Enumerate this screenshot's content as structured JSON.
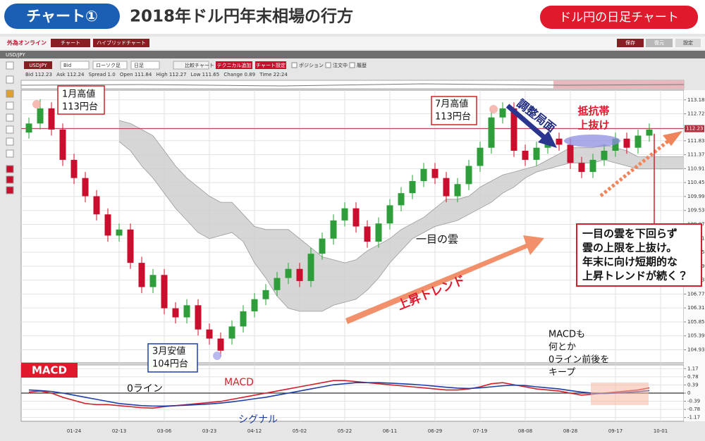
{
  "header": {
    "badge": "チャート①",
    "title": "2018年ドル円年末相場の行方",
    "tag": "ドル円の日足チャート"
  },
  "platform": {
    "logo": "外為オンライン",
    "tabs": [
      "チャート",
      "ハイブリッドチャート"
    ],
    "buttons": [
      "保存",
      "復元",
      "設定"
    ],
    "symbol": "USD/JPY",
    "toolbar": [
      "USDJPY",
      "Bid",
      "ローソク足",
      "日足",
      "比較チャート",
      "テクニカル追加",
      "チャート設定",
      "ポジション",
      "注文中",
      "履歴"
    ],
    "quote": [
      "Bid",
      "112.23",
      "Ask",
      "112.24",
      "Spread",
      "1.0",
      "Open",
      "111.84",
      "High",
      "112.27",
      "Low",
      "111.65",
      "Change",
      "0.89",
      "Time",
      "22:24"
    ]
  },
  "annotations": {
    "jan_high": [
      "1月高値",
      "113円台"
    ],
    "mar_low": [
      "3月安値",
      "104円台"
    ],
    "jul_high": [
      "7月高値",
      "113円台"
    ],
    "adjustment": "調整局面",
    "breakout": [
      "抵抗帯",
      "上抜け"
    ],
    "cloud": "一目の雲",
    "uptrend": "上昇トレンド",
    "outlook": [
      "一目の雲を下回らず",
      "雲の上限を上抜け。",
      "年末に向け短期的な",
      "上昇トレンドが続く？"
    ],
    "macd_note": [
      "MACDも",
      "何とか",
      "0ライン前後を",
      "キープ"
    ],
    "zero_line": "0ライン"
  },
  "chart_data": [
    {
      "type": "candlestick",
      "categories": [
        null,
        null,
        null,
        null,
        "01-24",
        null,
        null,
        null,
        "02-13",
        null,
        null,
        null,
        "03-06",
        null,
        null,
        null,
        "03-23",
        null,
        null,
        null,
        "04-12",
        null,
        null,
        null,
        "05-02",
        null,
        null,
        null,
        "05-22",
        null,
        null,
        null,
        "06-11",
        null,
        null,
        null,
        "06-29",
        null,
        null,
        null,
        "07-19",
        null,
        null,
        null,
        "08-08",
        null,
        null,
        null,
        "08-28",
        null,
        null,
        null,
        "09-17",
        null,
        null,
        null,
        "10-01",
        null,
        null
      ],
      "open": [
        112.1,
        112.4,
        112.9,
        112.2,
        111.2,
        110.6,
        110.0,
        109.4,
        108.7,
        108.9,
        107.8,
        107.0,
        107.4,
        106.3,
        106.0,
        106.4,
        105.6,
        105.3,
        105.3,
        105.7,
        106.2,
        106.6,
        106.9,
        107.3,
        107.6,
        107.2,
        108.1,
        108.6,
        109.2,
        109.6,
        109.0,
        108.5,
        109.1,
        109.7,
        110.1,
        110.5,
        110.9,
        110.6,
        110.0,
        110.4,
        111.0,
        111.6,
        112.6,
        112.9,
        111.5,
        111.2,
        111.6,
        111.9,
        111.7,
        111.1,
        110.8,
        111.2,
        111.5,
        111.9,
        111.6,
        112.0,
        null,
        null,
        null
      ],
      "high": [
        112.6,
        113.2,
        113.1,
        112.4,
        111.4,
        110.8,
        110.2,
        109.6,
        109.1,
        109.1,
        108.0,
        107.6,
        107.6,
        106.5,
        106.6,
        106.6,
        105.8,
        105.5,
        105.9,
        106.4,
        106.8,
        107.1,
        107.5,
        107.8,
        107.8,
        108.3,
        108.8,
        109.4,
        109.8,
        109.8,
        109.2,
        109.3,
        109.9,
        110.3,
        110.7,
        111.1,
        111.1,
        110.8,
        110.6,
        111.2,
        111.8,
        112.8,
        113.1,
        113.1,
        111.7,
        111.8,
        112.1,
        112.1,
        111.9,
        111.3,
        111.4,
        111.7,
        112.1,
        112.1,
        112.2,
        112.4,
        null,
        null,
        null
      ],
      "low": [
        111.9,
        112.2,
        112.0,
        111.0,
        110.4,
        109.8,
        109.2,
        108.5,
        108.5,
        107.6,
        106.8,
        106.8,
        106.1,
        105.8,
        105.8,
        105.4,
        105.1,
        104.7,
        105.1,
        105.5,
        106.0,
        106.4,
        106.7,
        107.1,
        107.0,
        107.0,
        107.9,
        108.4,
        109.0,
        108.8,
        108.3,
        108.3,
        108.9,
        109.5,
        109.9,
        110.3,
        110.4,
        109.8,
        109.8,
        110.2,
        110.8,
        111.4,
        112.4,
        111.3,
        111.0,
        111.0,
        111.4,
        111.5,
        110.9,
        110.6,
        110.6,
        111.0,
        111.3,
        111.4,
        111.4,
        111.8,
        null,
        null,
        null
      ],
      "close": [
        112.4,
        112.9,
        112.2,
        111.2,
        110.6,
        110.0,
        109.4,
        108.7,
        108.9,
        107.8,
        107.0,
        107.4,
        106.3,
        106.0,
        106.4,
        105.6,
        105.3,
        104.9,
        105.7,
        106.2,
        106.6,
        106.9,
        107.3,
        107.6,
        107.2,
        108.1,
        108.6,
        109.2,
        109.6,
        109.0,
        108.5,
        109.1,
        109.7,
        110.1,
        110.5,
        110.9,
        110.6,
        110.0,
        110.4,
        111.0,
        111.6,
        112.6,
        112.9,
        111.5,
        111.2,
        111.6,
        111.9,
        111.7,
        111.1,
        110.8,
        111.2,
        111.5,
        111.9,
        111.6,
        112.0,
        112.2,
        null,
        null,
        null
      ],
      "up_color": "#2e9e3a",
      "down_color": "#c8102e",
      "cloud": {
        "color": "#cfcfcf",
        "upper": [
          null,
          null,
          null,
          null,
          null,
          null,
          null,
          null,
          112.5,
          112.4,
          112.2,
          112.0,
          111.5,
          111.0,
          110.6,
          110.3,
          110.0,
          109.8,
          109.8,
          109.4,
          109.0,
          108.9,
          108.9,
          108.9,
          108.6,
          108.3,
          108.0,
          107.9,
          107.8,
          107.9,
          108.2,
          108.4,
          108.6,
          108.9,
          109.1,
          109.3,
          109.6,
          109.9,
          109.9,
          110.0,
          110.3,
          110.5,
          110.7,
          110.8,
          110.9,
          111.0,
          111.2,
          111.4,
          111.6,
          111.6,
          111.6,
          111.7,
          111.6,
          111.5,
          111.3,
          111.3,
          111.3,
          111.3,
          111.3
        ],
        "lower": [
          null,
          null,
          null,
          null,
          null,
          null,
          null,
          null,
          111.8,
          111.5,
          111.0,
          110.6,
          110.1,
          109.6,
          109.2,
          108.8,
          108.6,
          108.7,
          108.8,
          108.5,
          107.8,
          107.3,
          106.7,
          106.3,
          106.2,
          106.2,
          106.2,
          106.4,
          106.5,
          106.6,
          106.9,
          107.3,
          107.8,
          108.2,
          108.6,
          108.8,
          109.0,
          109.1,
          109.2,
          109.4,
          109.6,
          109.8,
          110.1,
          110.3,
          110.6,
          110.8,
          110.9,
          111.0,
          111.1,
          111.1,
          111.1,
          111.2,
          111.1,
          111.0,
          110.9,
          110.9,
          110.9,
          110.9,
          110.9
        ]
      },
      "price_line": {
        "value": 112.23,
        "color": "#b03040"
      },
      "ylim": [
        104.5,
        113.5
      ],
      "yticks": [
        113.18,
        112.72,
        112.26,
        111.83,
        111.37,
        110.91,
        110.45,
        109.99,
        109.53,
        109.07,
        108.61,
        108.15,
        107.69,
        107.23,
        106.77,
        106.31,
        105.85,
        105.39,
        104.93
      ],
      "grid": true
    },
    {
      "type": "line",
      "title": "MACD",
      "series": [
        {
          "name": "MACD",
          "color": "#d0202a",
          "values": [
            0.05,
            0.1,
            0.0,
            -0.2,
            -0.35,
            -0.5,
            -0.55,
            -0.55,
            -0.6,
            -0.65,
            -0.7,
            -0.72,
            -0.65,
            -0.6,
            -0.55,
            -0.5,
            -0.45,
            -0.4,
            -0.3,
            -0.2,
            -0.1,
            0.0,
            0.1,
            0.2,
            0.3,
            0.4,
            0.5,
            0.6,
            0.6,
            0.55,
            0.5,
            0.45,
            0.4,
            0.35,
            0.3,
            0.25,
            0.2,
            0.15,
            0.15,
            0.2,
            0.3,
            0.45,
            0.5,
            0.4,
            0.3,
            0.2,
            0.15,
            0.1,
            0.0,
            -0.1,
            -0.05,
            0.0,
            0.05,
            0.1,
            0.15,
            0.25,
            null,
            null,
            null
          ]
        },
        {
          "name": "シグナル",
          "color": "#1f3fa8",
          "values": [
            0.15,
            0.12,
            0.08,
            0.0,
            -0.1,
            -0.2,
            -0.3,
            -0.4,
            -0.5,
            -0.55,
            -0.6,
            -0.62,
            -0.62,
            -0.6,
            -0.58,
            -0.55,
            -0.52,
            -0.48,
            -0.42,
            -0.35,
            -0.27,
            -0.2,
            -0.1,
            0.0,
            0.1,
            0.2,
            0.3,
            0.4,
            0.45,
            0.5,
            0.5,
            0.5,
            0.48,
            0.45,
            0.42,
            0.38,
            0.33,
            0.28,
            0.24,
            0.22,
            0.25,
            0.3,
            0.35,
            0.38,
            0.36,
            0.3,
            0.25,
            0.2,
            0.12,
            0.05,
            0.0,
            -0.02,
            0.0,
            0.03,
            0.07,
            0.12,
            null,
            null,
            null
          ]
        }
      ],
      "ylim": [
        -1.35,
        1.35
      ],
      "yticks": [
        1.17,
        0.78,
        0.39,
        0,
        -0.39,
        -0.78,
        -1.17
      ],
      "grid": true
    }
  ]
}
